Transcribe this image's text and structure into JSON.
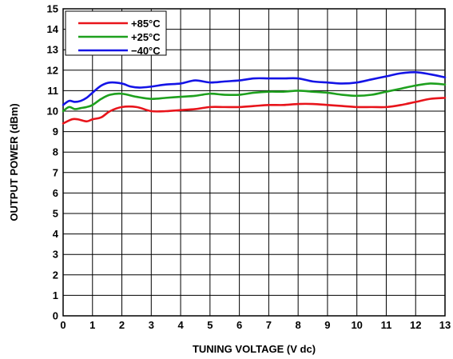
{
  "chart_data": {
    "type": "line",
    "title": "",
    "xlabel": "TUNING VOLTAGE (V dc)",
    "ylabel": "OUTPUT POWER (dBm)",
    "xlim": [
      0,
      13
    ],
    "ylim": [
      0,
      15
    ],
    "x_ticks": [
      0,
      1,
      2,
      3,
      4,
      5,
      6,
      7,
      8,
      9,
      10,
      11,
      12,
      13
    ],
    "y_ticks": [
      0,
      1,
      2,
      3,
      4,
      5,
      6,
      7,
      8,
      9,
      10,
      11,
      12,
      13,
      14,
      15
    ],
    "grid": true,
    "legend_position": "top-left",
    "series": [
      {
        "name": "+85°C",
        "color": "#e8141b",
        "x": [
          0,
          0.3,
          0.5,
          0.8,
          1.0,
          1.3,
          1.6,
          2.0,
          2.5,
          3.0,
          3.5,
          4.0,
          4.5,
          5.0,
          5.5,
          6.0,
          6.5,
          7.0,
          7.5,
          8.0,
          8.5,
          9.0,
          9.5,
          10.0,
          10.5,
          11.0,
          11.5,
          12.0,
          12.5,
          13.0
        ],
        "y": [
          9.4,
          9.6,
          9.6,
          9.5,
          9.6,
          9.7,
          10.0,
          10.2,
          10.2,
          10.0,
          10.0,
          10.05,
          10.1,
          10.2,
          10.2,
          10.2,
          10.25,
          10.3,
          10.3,
          10.35,
          10.35,
          10.3,
          10.25,
          10.2,
          10.2,
          10.2,
          10.3,
          10.45,
          10.6,
          10.65
        ]
      },
      {
        "name": "+25°C",
        "color": "#1ea01e",
        "x": [
          0,
          0.2,
          0.4,
          0.6,
          0.8,
          1.0,
          1.3,
          1.6,
          2.0,
          2.5,
          3.0,
          3.5,
          4.0,
          4.5,
          5.0,
          5.5,
          6.0,
          6.5,
          7.0,
          7.5,
          8.0,
          8.5,
          9.0,
          9.5,
          10.0,
          10.5,
          11.0,
          11.5,
          12.0,
          12.5,
          13.0
        ],
        "y": [
          10.0,
          10.2,
          10.1,
          10.15,
          10.2,
          10.3,
          10.6,
          10.8,
          10.85,
          10.7,
          10.6,
          10.65,
          10.7,
          10.75,
          10.85,
          10.8,
          10.8,
          10.9,
          10.95,
          10.95,
          11.0,
          10.95,
          10.9,
          10.8,
          10.75,
          10.8,
          10.95,
          11.1,
          11.25,
          11.35,
          11.3
        ]
      },
      {
        "name": "−40°C",
        "color": "#1414e6",
        "x": [
          0,
          0.2,
          0.4,
          0.6,
          0.8,
          1.0,
          1.3,
          1.6,
          2.0,
          2.3,
          2.6,
          3.0,
          3.5,
          4.0,
          4.5,
          5.0,
          5.5,
          6.0,
          6.5,
          7.0,
          7.5,
          8.0,
          8.5,
          9.0,
          9.5,
          10.0,
          10.5,
          11.0,
          11.5,
          12.0,
          12.5,
          13.0
        ],
        "y": [
          10.3,
          10.5,
          10.45,
          10.5,
          10.65,
          10.9,
          11.25,
          11.4,
          11.35,
          11.2,
          11.15,
          11.2,
          11.3,
          11.35,
          11.5,
          11.4,
          11.45,
          11.5,
          11.6,
          11.6,
          11.6,
          11.6,
          11.45,
          11.4,
          11.35,
          11.4,
          11.55,
          11.7,
          11.85,
          11.9,
          11.8,
          11.65
        ]
      }
    ]
  }
}
